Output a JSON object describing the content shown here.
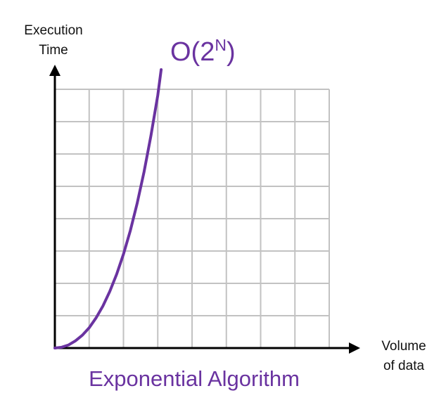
{
  "chart_data": {
    "type": "line",
    "title": "Exponential Algorithm",
    "xlabel": [
      "Volume",
      "of data"
    ],
    "ylabel": [
      "Execution",
      "Time"
    ],
    "curve_label": {
      "base": "O(2",
      "superscript": "N",
      "close": ")"
    },
    "series": [
      {
        "values": [
          0,
          0.003,
          0.011,
          0.026,
          0.046,
          0.073,
          0.108,
          0.151,
          0.203,
          0.265,
          0.337,
          0.422,
          0.52,
          0.633,
          0.762,
          0.908,
          1.0
        ],
        "x": [
          0,
          0.2,
          0.4,
          0.6,
          0.8,
          1.0,
          1.2,
          1.4,
          1.6,
          1.8,
          2.0,
          2.2,
          2.4,
          2.6,
          2.8,
          3.0,
          3.1
        ]
      }
    ],
    "xlim": [
      0,
      8
    ],
    "ylim": [
      0,
      8
    ],
    "grid": true,
    "colors": {
      "curve": "#6a33a0",
      "grid": "#c2c2c2",
      "axes": "#000000",
      "text": "#111111"
    }
  }
}
